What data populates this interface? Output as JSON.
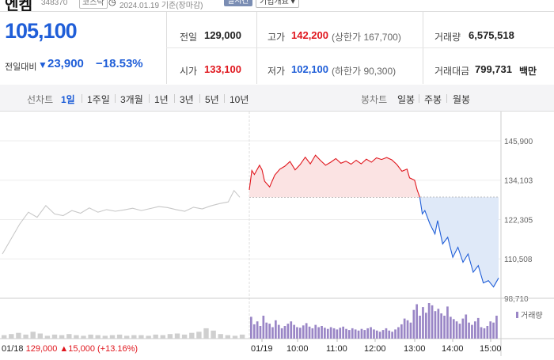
{
  "header": {
    "stock_name": "엔켐",
    "stock_code": "348370",
    "market_badge": "코스닥",
    "clock_icon": "clock-icon",
    "date_text": "2024.01.19 기준(장마감)",
    "realtime_badge": "실시간",
    "company_info_button": "기업개요 ▾"
  },
  "summary": {
    "current_price": "105,100",
    "change_label": "전일대비",
    "change_value": "23,900",
    "change_rate": "−18.53%",
    "stats": {
      "prev_close_label": "전일",
      "prev_close": "129,000",
      "high_label": "고가",
      "high": "142,200",
      "upper_limit": "(상한가 167,700)",
      "volume_label": "거래량",
      "volume": "6,575,518",
      "open_label": "시가",
      "open": "133,100",
      "low_label": "저가",
      "low": "102,100",
      "lower_limit": "(하한가 90,300)",
      "amount_label": "거래대금",
      "amount": "799,731",
      "amount_unit": "백만"
    }
  },
  "tabs": {
    "line_chart_label": "선차트",
    "periods": [
      "1일",
      "1주일",
      "3개월",
      "1년",
      "3년",
      "5년",
      "10년"
    ],
    "active_period": "1일",
    "candle_chart_label": "봉차트",
    "candles": [
      "일봉",
      "주봉",
      "월봉"
    ]
  },
  "colors": {
    "up": "#e0161d",
    "down": "#1f5ed8",
    "prev_day_line": "#c8c8c8",
    "volume": "#9a86c6",
    "fill_up": "#fbe3e3",
    "fill_down": "#dfe9f8"
  },
  "chart_data": {
    "type": "line",
    "y_ticks": [
      "145,900",
      "134,103",
      "122,305",
      "110,508",
      "98,710"
    ],
    "ylim": [
      98710,
      145900
    ],
    "reference_price": 129000,
    "x_ticks": [
      "01/19",
      "10:00",
      "11:00",
      "12:00",
      "13:00",
      "14:00",
      "15:00"
    ],
    "prev_day_label": "01/18",
    "prev_day_close": "129,000",
    "prev_day_change": "15,000",
    "prev_day_rate": "(+13.16%)",
    "volume_label": "거래량",
    "prev_day_series": [
      [
        0,
        112000
      ],
      [
        3,
        116500
      ],
      [
        6,
        121000
      ],
      [
        9,
        124500
      ],
      [
        12,
        123000
      ],
      [
        15,
        126500
      ],
      [
        18,
        124000
      ],
      [
        21,
        123500
      ],
      [
        24,
        125000
      ],
      [
        27,
        124200
      ],
      [
        30,
        125800
      ],
      [
        33,
        124500
      ],
      [
        36,
        125300
      ],
      [
        39,
        124800
      ],
      [
        42,
        125200
      ],
      [
        45,
        125700
      ],
      [
        48,
        125000
      ],
      [
        51,
        125600
      ],
      [
        54,
        126200
      ],
      [
        57,
        125900
      ],
      [
        60,
        125300
      ],
      [
        63,
        124800
      ],
      [
        66,
        126000
      ],
      [
        69,
        125500
      ],
      [
        72,
        126400
      ],
      [
        75,
        127100
      ],
      [
        78,
        127600
      ],
      [
        80,
        131000
      ],
      [
        82,
        129000
      ]
    ],
    "today_up_series": [
      [
        0,
        131200
      ],
      [
        1,
        137000
      ],
      [
        2,
        135800
      ],
      [
        4,
        138600
      ],
      [
        5,
        137200
      ],
      [
        6,
        133800
      ],
      [
        8,
        132100
      ],
      [
        10,
        135600
      ],
      [
        12,
        137400
      ],
      [
        14,
        138300
      ],
      [
        16,
        139700
      ],
      [
        18,
        137200
      ],
      [
        20,
        138800
      ],
      [
        22,
        141000
      ],
      [
        24,
        139000
      ],
      [
        26,
        141600
      ],
      [
        28,
        140000
      ],
      [
        30,
        138600
      ],
      [
        32,
        139500
      ],
      [
        34,
        140600
      ],
      [
        36,
        139200
      ],
      [
        38,
        139800
      ],
      [
        40,
        138900
      ],
      [
        42,
        140100
      ],
      [
        44,
        139000
      ],
      [
        46,
        140400
      ],
      [
        48,
        139500
      ],
      [
        50,
        140800
      ],
      [
        52,
        140300
      ],
      [
        54,
        140900
      ],
      [
        56,
        140200
      ],
      [
        58,
        138800
      ],
      [
        60,
        136800
      ],
      [
        62,
        137400
      ],
      [
        63,
        134800
      ],
      [
        65,
        134100
      ],
      [
        66,
        131200
      ],
      [
        67,
        129000
      ]
    ],
    "today_down_series": [
      [
        67,
        129000
      ],
      [
        68,
        124000
      ],
      [
        69,
        125000
      ],
      [
        71,
        121000
      ],
      [
        73,
        118000
      ],
      [
        74,
        122000
      ],
      [
        76,
        115000
      ],
      [
        78,
        117000
      ],
      [
        80,
        111000
      ],
      [
        82,
        114000
      ],
      [
        84,
        109500
      ],
      [
        86,
        112000
      ],
      [
        88,
        106500
      ],
      [
        90,
        108500
      ],
      [
        92,
        103300
      ],
      [
        94,
        104000
      ],
      [
        96,
        102100
      ],
      [
        98,
        104800
      ]
    ],
    "volume_prev_day": [
      6,
      8,
      10,
      7,
      12,
      9,
      5,
      7,
      6,
      8,
      6,
      5,
      7,
      6,
      5,
      6,
      7,
      5,
      6,
      6,
      5,
      7,
      6,
      8,
      9,
      7,
      10,
      12,
      18,
      14,
      8,
      6,
      5,
      7
    ],
    "volume_today": [
      38,
      25,
      30,
      22,
      40,
      28,
      26,
      20,
      32,
      24,
      18,
      22,
      26,
      30,
      24,
      20,
      19,
      23,
      27,
      21,
      18,
      24,
      20,
      22,
      19,
      17,
      20,
      18,
      16,
      19,
      21,
      17,
      15,
      18,
      16,
      14,
      17,
      15,
      18,
      20,
      16,
      14,
      12,
      15,
      18,
      14,
      12,
      16,
      20,
      25,
      35,
      32,
      28,
      50,
      60,
      40,
      55,
      45,
      62,
      58,
      48,
      52,
      44,
      40,
      56,
      38,
      34,
      30,
      26,
      35,
      42,
      28,
      24,
      30,
      36,
      20,
      18,
      22,
      30,
      28,
      40
    ]
  }
}
